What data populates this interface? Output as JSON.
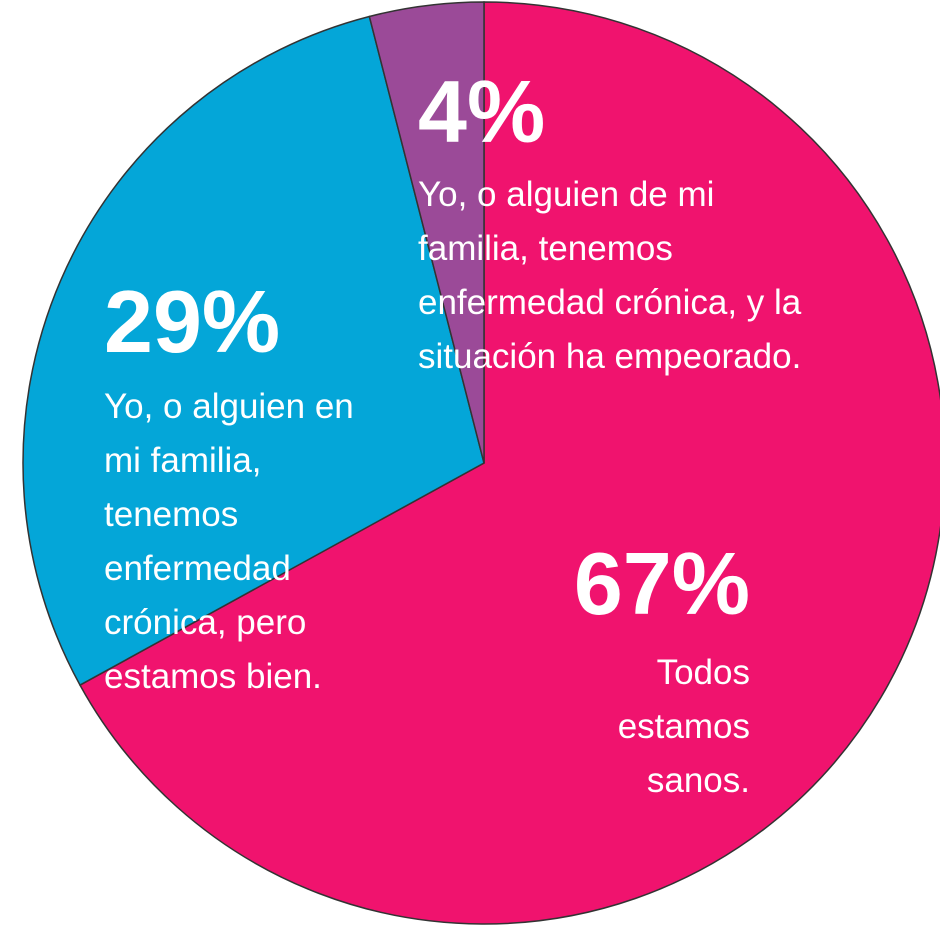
{
  "chart_data": {
    "type": "pie",
    "categories": [
      "Todos estamos sanos.",
      "Yo, o alguien en mi familia, tenemos enfermedad crónica, pero estamos bien.",
      "Yo, o alguien de mi familia, tenemos enfermedad crónica, y la situación ha empeorado."
    ],
    "values": [
      67,
      29,
      4
    ],
    "value_labels": [
      "67%",
      "29%",
      "4%"
    ],
    "colors": [
      "#f0136e",
      "#04a6d8",
      "#9b4a98"
    ]
  }
}
